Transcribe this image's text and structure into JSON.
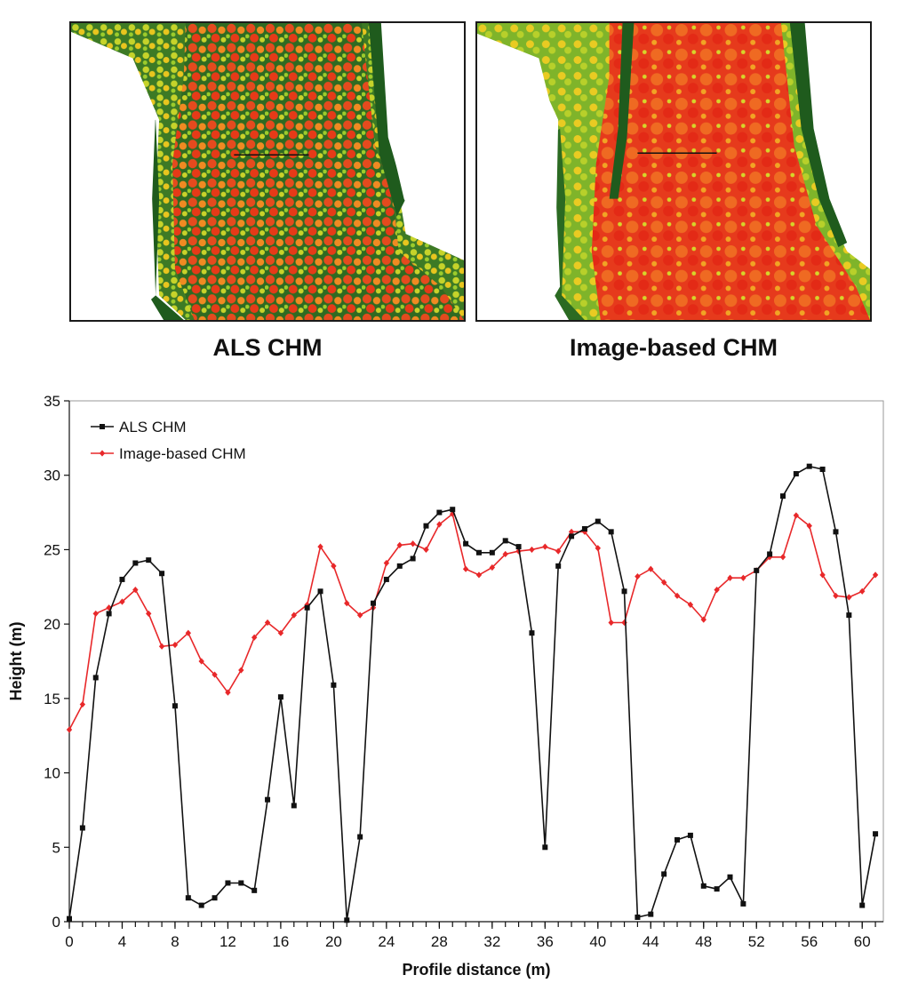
{
  "panels": [
    {
      "caption": "ALS CHM"
    },
    {
      "caption": "Image-based CHM"
    }
  ],
  "colors": {
    "als": "#111111",
    "image": "#e8282a",
    "canopy_high": "#e83a1c",
    "canopy_mid": "#f2c21a",
    "canopy_low": "#a7cc2a",
    "ground": "#1f5b1d"
  },
  "chart_data": {
    "type": "line",
    "xlabel": "Profile distance (m)",
    "ylabel": "Height (m)",
    "xlim": [
      0,
      61.6
    ],
    "ylim": [
      0,
      35
    ],
    "xticks": [
      0,
      4,
      8,
      12,
      16,
      20,
      24,
      28,
      32,
      36,
      40,
      44,
      48,
      52,
      56,
      60
    ],
    "yticks": [
      0,
      5,
      10,
      15,
      20,
      25,
      30,
      35
    ],
    "grid": false,
    "legend_position": "top-left",
    "series": [
      {
        "name": "ALS CHM",
        "marker": "square",
        "x": [
          0,
          1,
          2,
          3,
          4,
          5,
          6,
          7,
          8,
          9,
          10,
          11,
          12,
          13,
          14,
          15,
          16,
          17,
          18,
          19,
          20,
          21,
          22,
          23,
          24,
          25,
          26,
          27,
          28,
          29,
          30,
          31,
          32,
          33,
          34,
          35,
          36,
          37,
          38,
          39,
          40,
          41,
          42,
          43,
          44,
          45,
          46,
          47,
          48,
          49,
          50,
          51,
          52,
          53,
          54,
          55,
          56,
          57,
          58,
          59,
          60,
          61
        ],
        "y": [
          0.2,
          6.3,
          16.4,
          20.7,
          23.0,
          24.1,
          24.3,
          23.4,
          14.5,
          1.6,
          1.1,
          1.6,
          2.6,
          2.6,
          2.1,
          8.2,
          15.1,
          7.8,
          21.1,
          22.2,
          15.9,
          0.1,
          5.7,
          21.4,
          23.0,
          23.9,
          24.4,
          26.6,
          27.5,
          27.7,
          25.4,
          24.8,
          24.8,
          25.6,
          25.2,
          19.4,
          5.0,
          23.9,
          25.9,
          26.4,
          26.9,
          26.2,
          22.2,
          0.3,
          0.5,
          3.2,
          5.5,
          5.8,
          2.4,
          2.2,
          3.0,
          1.2,
          23.6,
          24.7,
          28.6,
          30.1,
          30.6,
          30.4,
          26.2,
          20.6,
          1.1,
          5.9
        ]
      },
      {
        "name": "Image-based CHM",
        "marker": "diamond",
        "x": [
          0,
          1,
          2,
          3,
          4,
          5,
          6,
          7,
          8,
          9,
          10,
          11,
          12,
          13,
          14,
          15,
          16,
          17,
          18,
          19,
          20,
          21,
          22,
          23,
          24,
          25,
          26,
          27,
          28,
          29,
          30,
          31,
          32,
          33,
          34,
          35,
          36,
          37,
          38,
          39,
          40,
          41,
          42,
          43,
          44,
          45,
          46,
          47,
          48,
          49,
          50,
          51,
          52,
          53,
          54,
          55,
          56,
          57,
          58,
          59,
          60,
          61
        ],
        "y": [
          12.9,
          14.6,
          20.7,
          21.1,
          21.5,
          22.3,
          20.7,
          18.5,
          18.6,
          19.4,
          17.5,
          16.6,
          15.4,
          16.9,
          19.1,
          20.1,
          19.4,
          20.6,
          21.3,
          25.2,
          23.9,
          21.4,
          20.6,
          21.1,
          24.1,
          25.3,
          25.4,
          25.0,
          26.7,
          27.4,
          23.7,
          23.3,
          23.8,
          24.7,
          24.9,
          25.0,
          25.2,
          24.9,
          26.2,
          26.2,
          25.1,
          20.1,
          20.1,
          23.2,
          23.7,
          22.8,
          21.9,
          21.3,
          20.3,
          22.3,
          23.1,
          23.1,
          23.6,
          24.5,
          24.5,
          27.3,
          26.6,
          23.3,
          21.9,
          21.8,
          22.2,
          23.3
        ]
      }
    ]
  }
}
